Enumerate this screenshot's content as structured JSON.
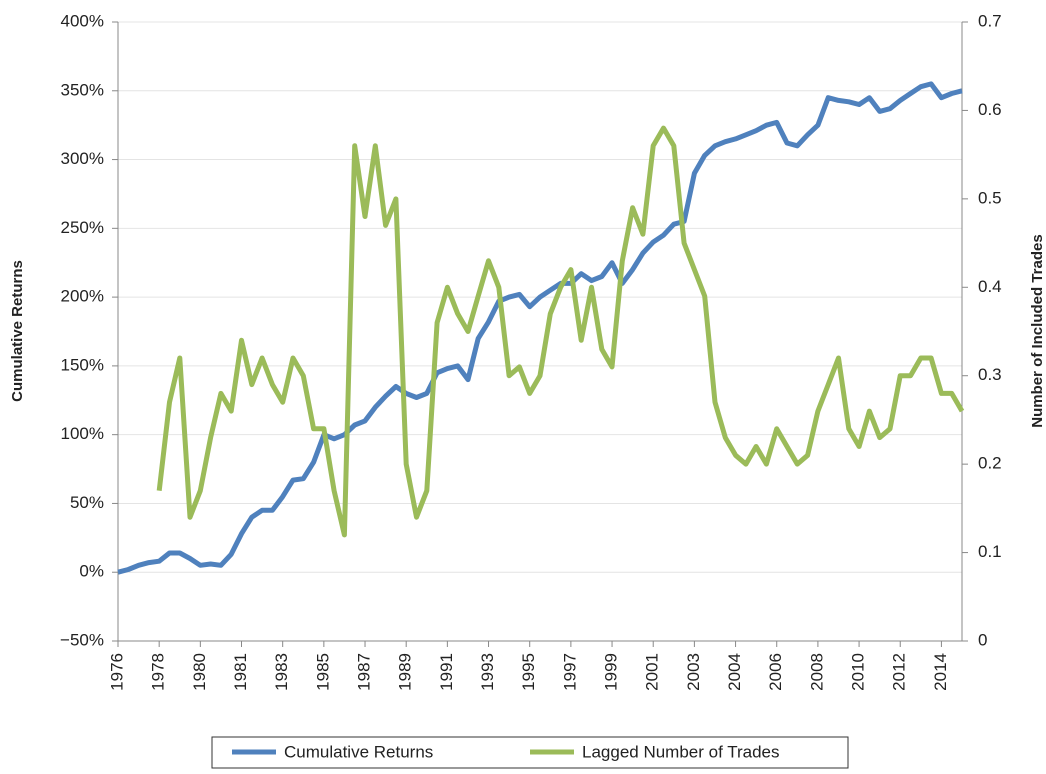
{
  "chart_data": {
    "type": "line",
    "y_label": "Cumulative Returns",
    "y2_label": "Number of Included Trades",
    "categories": [
      "1976",
      null,
      null,
      null,
      "1978",
      null,
      null,
      null,
      "1980",
      null,
      null,
      null,
      "1981",
      null,
      null,
      null,
      "1983",
      null,
      null,
      null,
      "1985",
      null,
      null,
      null,
      "1987",
      null,
      null,
      null,
      "1989",
      null,
      null,
      null,
      "1991",
      null,
      null,
      null,
      "1993",
      null,
      null,
      null,
      "1995",
      null,
      null,
      null,
      "1997",
      null,
      null,
      null,
      "1999",
      null,
      null,
      null,
      "2001",
      null,
      null,
      null,
      "2003",
      null,
      null,
      null,
      "2004",
      null,
      null,
      null,
      "2006",
      null,
      null,
      null,
      "2008",
      null,
      null,
      null,
      "2010",
      null,
      null,
      null,
      "2012",
      null,
      null,
      null,
      "2014",
      null,
      null
    ],
    "series": [
      {
        "name": "Cumulative Returns",
        "color": "#4f81bd",
        "axis": "y",
        "values": [
          0,
          2,
          5,
          7,
          8,
          14,
          14,
          10,
          5,
          6,
          5,
          13,
          28,
          40,
          45,
          45,
          55,
          67,
          68,
          80,
          100,
          97,
          100,
          107,
          110,
          120,
          128,
          135,
          130,
          127,
          130,
          145,
          148,
          150,
          140,
          170,
          182,
          197,
          200,
          202,
          193,
          200,
          205,
          210,
          210,
          217,
          212,
          215,
          225,
          210,
          220,
          232,
          240,
          245,
          253,
          255,
          290,
          303,
          310,
          313,
          315,
          318,
          321,
          325,
          327,
          312,
          310,
          318,
          325,
          345,
          343,
          342,
          340,
          345,
          335,
          337,
          343,
          348,
          353,
          355,
          345,
          348,
          350
        ]
      },
      {
        "name": "Lagged Number of Trades",
        "color": "#9bbb59",
        "axis": "y2",
        "values": [
          null,
          null,
          null,
          null,
          0.17,
          0.27,
          0.32,
          0.14,
          0.17,
          0.23,
          0.28,
          0.26,
          0.34,
          0.29,
          0.32,
          0.29,
          0.27,
          0.32,
          0.3,
          0.24,
          0.24,
          0.17,
          0.12,
          0.56,
          0.48,
          0.56,
          0.47,
          0.5,
          0.2,
          0.14,
          0.17,
          0.36,
          0.4,
          0.37,
          0.35,
          0.39,
          0.43,
          0.4,
          0.3,
          0.31,
          0.28,
          0.3,
          0.37,
          0.4,
          0.42,
          0.34,
          0.4,
          0.33,
          0.31,
          0.43,
          0.49,
          0.46,
          0.56,
          0.58,
          0.56,
          0.45,
          0.42,
          0.39,
          0.27,
          0.23,
          0.21,
          0.2,
          0.22,
          0.2,
          0.24,
          0.22,
          0.2,
          0.21,
          0.26,
          0.29,
          0.32,
          0.24,
          0.22,
          0.26,
          0.23,
          0.24,
          0.3,
          0.3,
          0.32,
          0.32,
          0.28,
          0.28,
          0.26
        ]
      }
    ],
    "ylim": [
      -50,
      400
    ],
    "yticks": [
      {
        "value": -50,
        "label": "−50%"
      },
      {
        "value": 0,
        "label": "0%"
      },
      {
        "value": 50,
        "label": "50%"
      },
      {
        "value": 100,
        "label": "100%"
      },
      {
        "value": 150,
        "label": "150%"
      },
      {
        "value": 200,
        "label": "200%"
      },
      {
        "value": 250,
        "label": "250%"
      },
      {
        "value": 300,
        "label": "300%"
      },
      {
        "value": 350,
        "label": "350%"
      },
      {
        "value": 400,
        "label": "400%"
      }
    ],
    "y2lim": [
      0,
      0.7
    ],
    "y2ticks": [
      0,
      0.1,
      0.2,
      0.3,
      0.4,
      0.5,
      0.6,
      0.7
    ],
    "grid": true
  }
}
